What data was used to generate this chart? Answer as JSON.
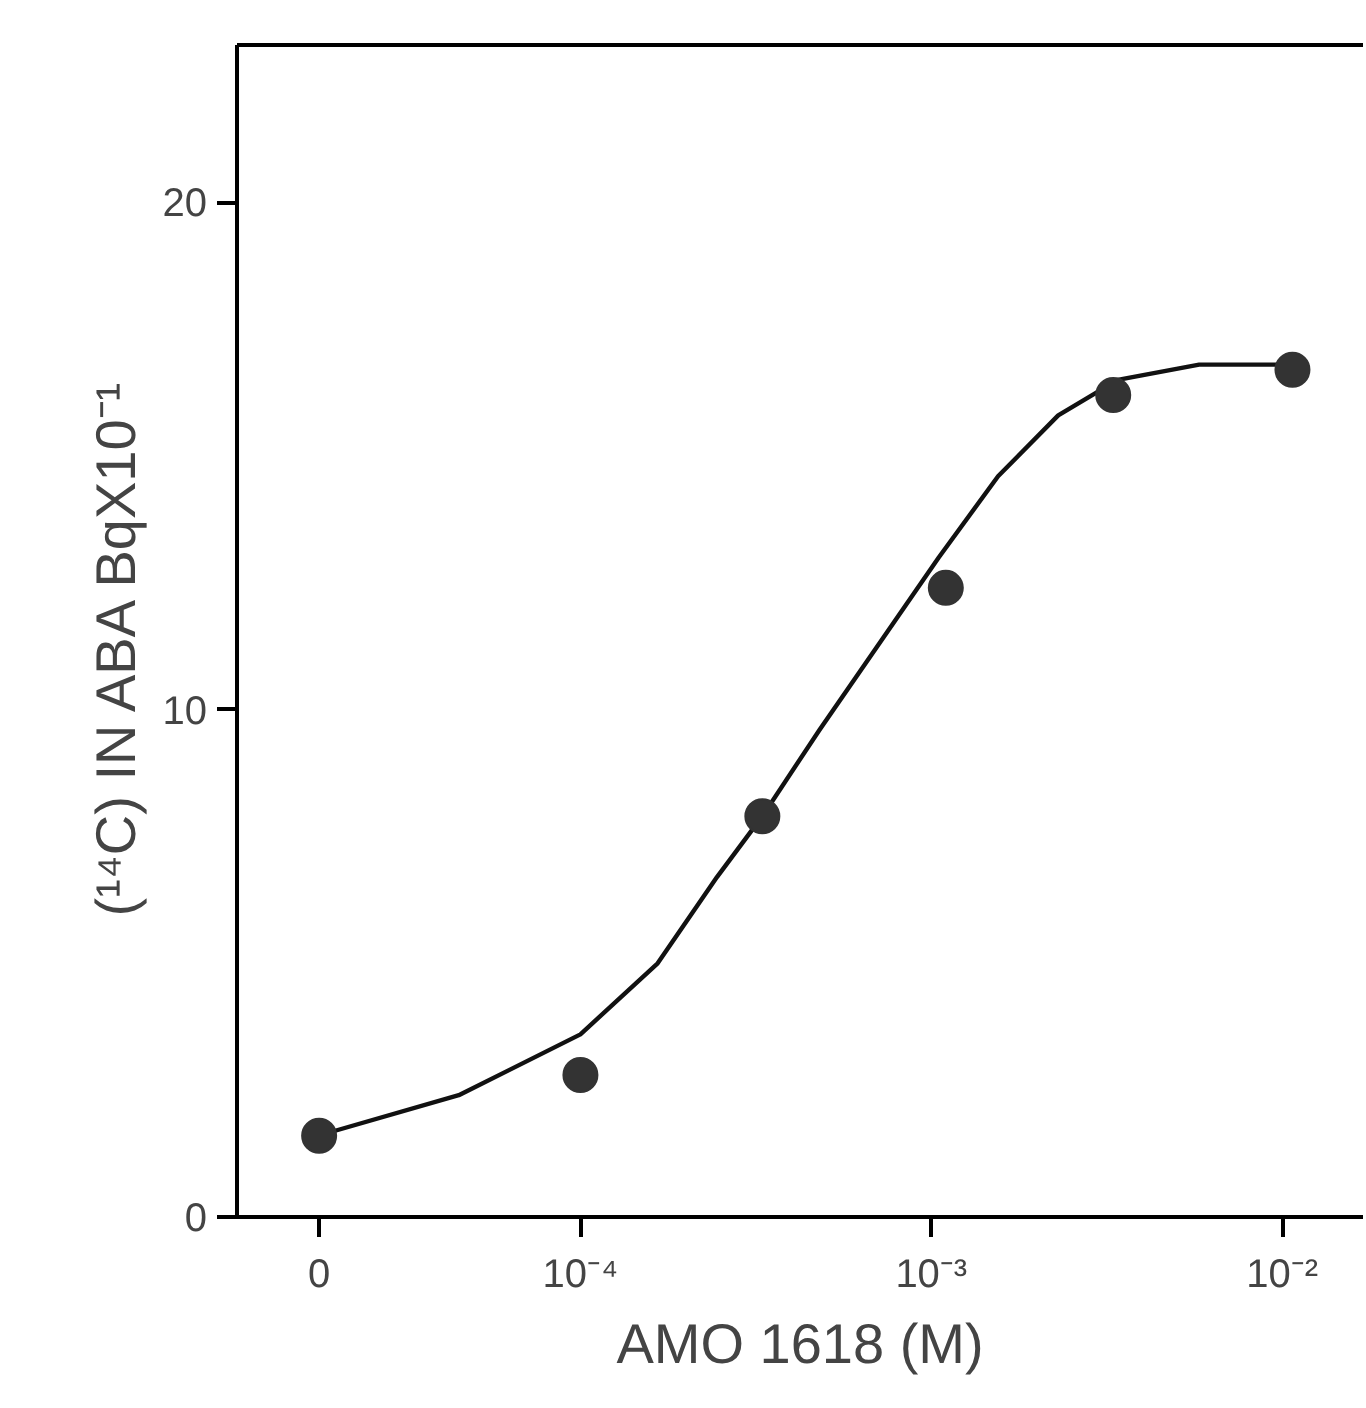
{
  "chart_data": {
    "type": "scatter",
    "xlabel": "AMO 1618 (M)",
    "ylabel": "(¹⁴C) IN ABA   BqX10⁻¹",
    "x": [
      1.8e-05,
      0.0001,
      0.00033,
      0.0011,
      0.0033,
      0.0107
    ],
    "series": [
      {
        "color": "#333333",
        "marker": "circle",
        "values": [
          1.6,
          2.8,
          7.9,
          12.4,
          16.2,
          16.7
        ]
      },
      {
        "type": "line",
        "color": "#111111",
        "line_style": "solid",
        "x": [
          2e-05,
          4.5e-05,
          0.0001,
          0.000166,
          0.000245,
          0.00033,
          0.00048,
          0.00071,
          0.00105,
          0.00155,
          0.0023,
          0.0034,
          0.0058,
          0.011
        ],
        "values": [
          1.7,
          2.4,
          3.6,
          5.0,
          6.7,
          7.9,
          9.6,
          11.3,
          13.0,
          14.6,
          15.8,
          16.5,
          16.8,
          16.8
        ]
      }
    ],
    "log": "x",
    "xlim": [
      1.05e-05,
      0.017
    ],
    "xticks": [
      {
        "value": 1.8e-05,
        "label": "0"
      },
      {
        "value": 0.0001,
        "label": "10⁻⁴"
      },
      {
        "value": 0.001,
        "label": "10⁻³"
      },
      {
        "value": 0.01,
        "label": "10⁻²"
      }
    ],
    "ylim": [
      0,
      23.1
    ],
    "yticks": [
      0,
      10,
      20
    ],
    "grid": false
  }
}
